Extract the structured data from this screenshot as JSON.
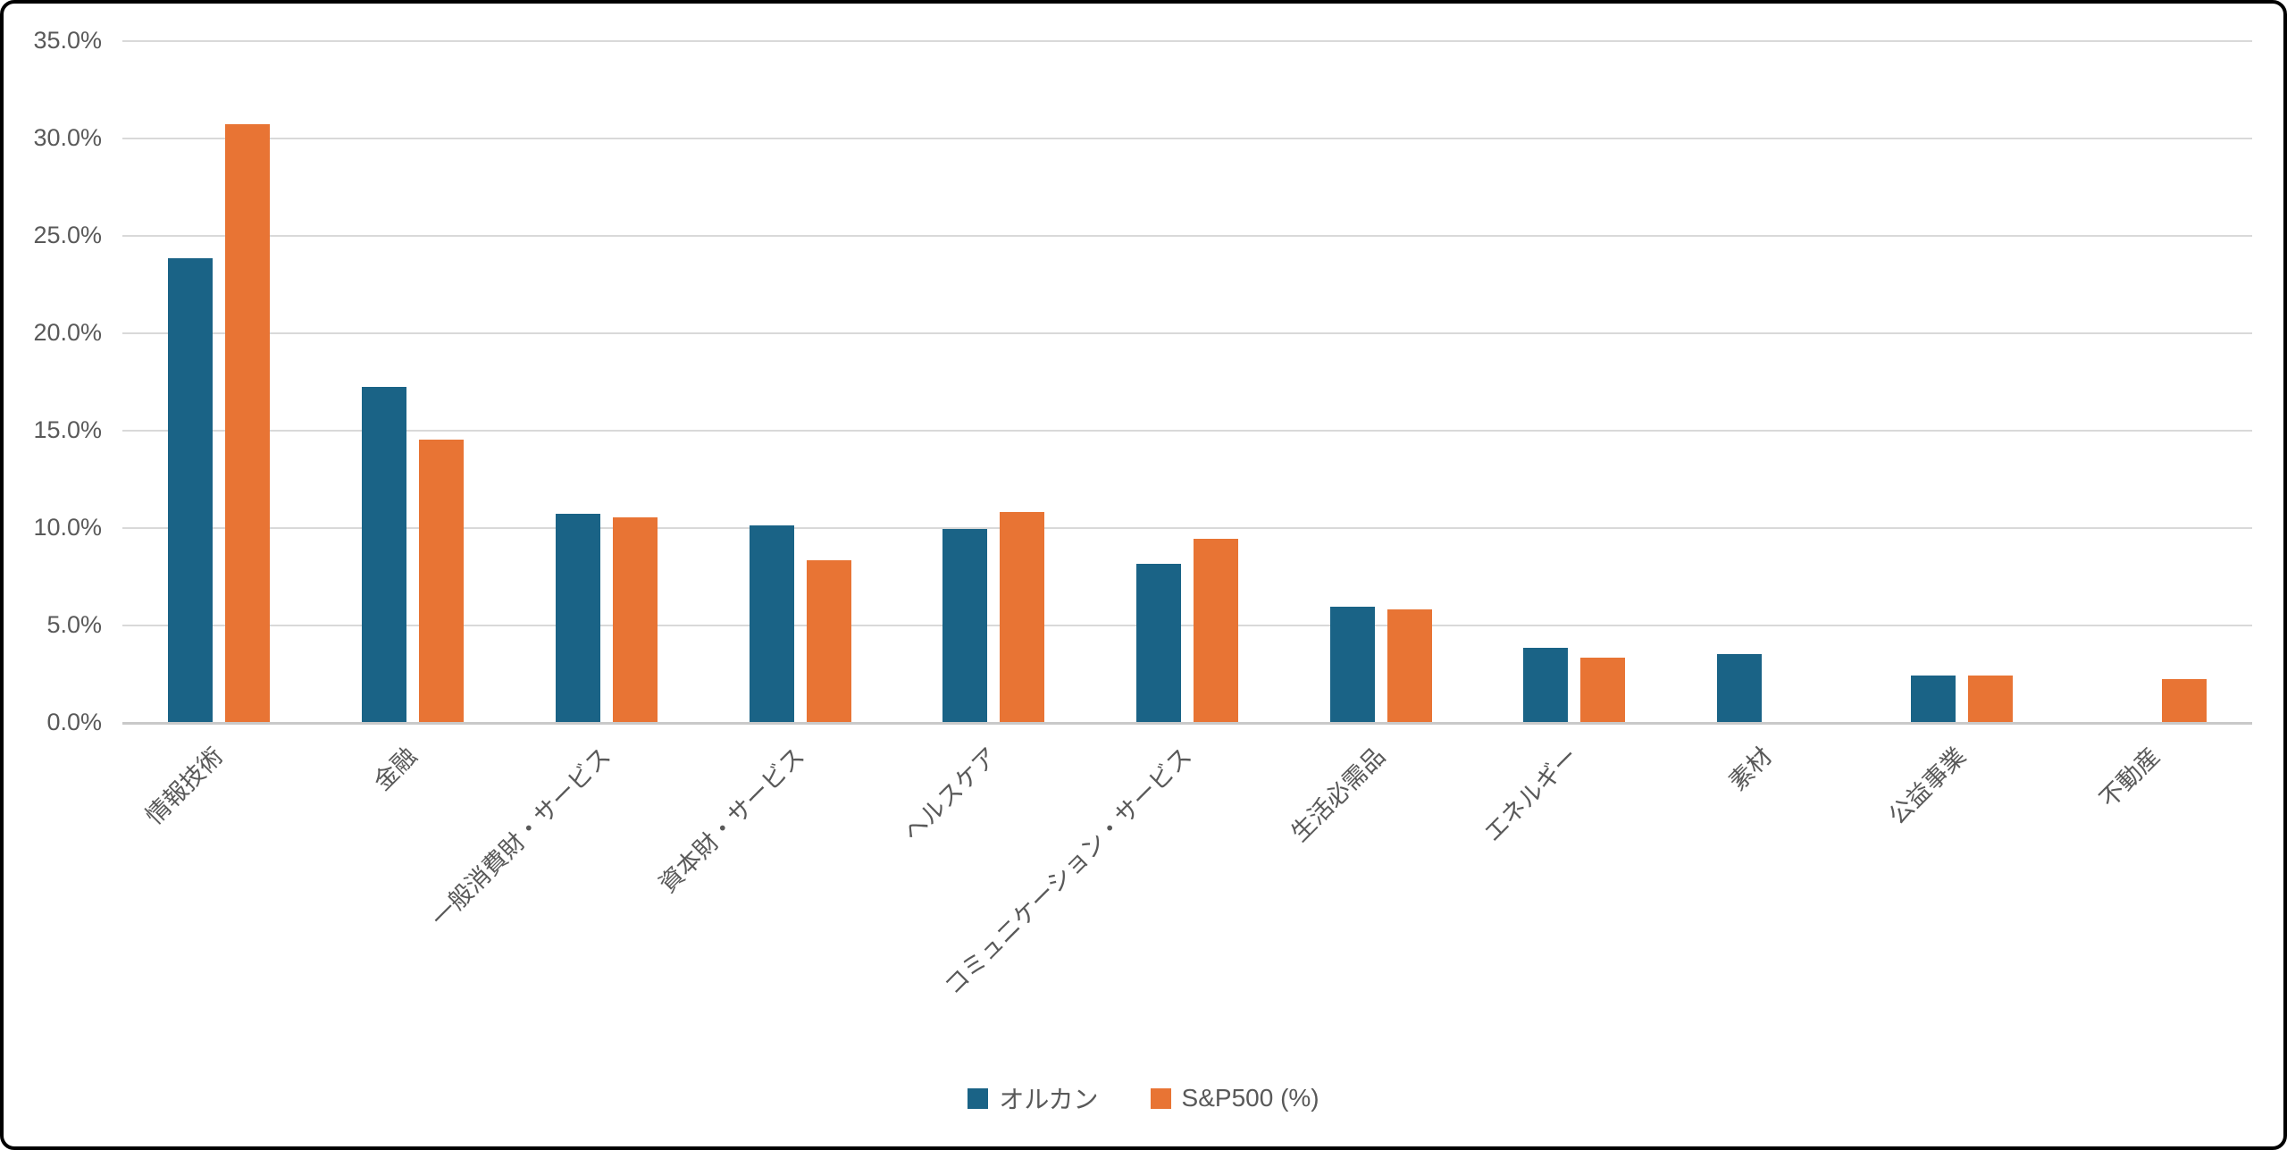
{
  "chart_data": {
    "type": "bar",
    "title": "",
    "xlabel": "",
    "ylabel": "",
    "ylim": [
      0,
      35
    ],
    "ytick_step": 5,
    "ytick_labels": [
      "0.0%",
      "5.0%",
      "10.0%",
      "15.0%",
      "20.0%",
      "25.0%",
      "30.0%",
      "35.0%"
    ],
    "grid": true,
    "legend_position": "bottom-center",
    "categories": [
      "情報技術",
      "金融",
      "一般消費財・サービス",
      "資本財・サービス",
      "ヘルスケア",
      "コミュニケーション・サービス",
      "生活必需品",
      "エネルギー",
      "素材",
      "公益事業",
      "不動産"
    ],
    "series": [
      {
        "name": "オルカン",
        "color": "#1A6386",
        "values": [
          23.8,
          17.2,
          10.7,
          10.1,
          9.9,
          8.1,
          5.9,
          3.8,
          3.5,
          2.4,
          0
        ]
      },
      {
        "name": "S&P500 (%)",
        "color": "#E87434",
        "values": [
          30.7,
          14.5,
          10.5,
          8.3,
          10.8,
          9.4,
          5.8,
          3.3,
          0,
          2.4,
          2.2
        ]
      }
    ]
  },
  "colors": {
    "gridline": "#d9d9d9",
    "axis_line": "#c9c9c9",
    "tick_text": "#595959",
    "background": "#ffffff",
    "frame_border": "#000000"
  },
  "legend": {
    "items": [
      {
        "label": "オルカン",
        "color": "#1A6386"
      },
      {
        "label": "S&P500 (%)",
        "color": "#E87434"
      }
    ]
  }
}
